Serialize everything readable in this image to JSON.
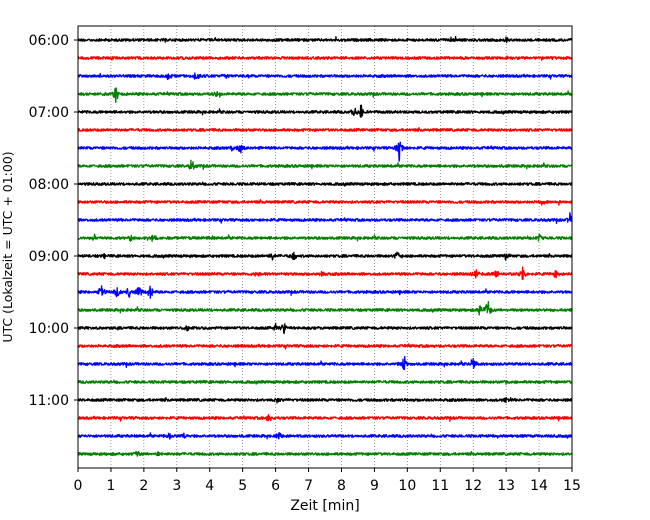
{
  "chart_data": {
    "type": "line",
    "title": "",
    "xlabel": "Zeit  [min]",
    "ylabel": "UTC (Lokalzeit = UTC + 01:00)",
    "xlim": [
      0,
      15
    ],
    "x_ticks": [
      "0",
      "1",
      "2",
      "3",
      "4",
      "5",
      "6",
      "7",
      "8",
      "9",
      "10",
      "11",
      "12",
      "13",
      "14",
      "15"
    ],
    "y_ticks": [
      "06:00",
      "07:00",
      "08:00",
      "09:00",
      "10:00",
      "11:00"
    ],
    "grid_x": true,
    "row_minutes": 15,
    "colors": [
      "#000000",
      "#ff0000",
      "#0000ff",
      "#008000"
    ],
    "rows": [
      {
        "start": "06:00",
        "color": "#000000",
        "events": [
          [
            13.0,
            0.35
          ]
        ]
      },
      {
        "start": "06:15",
        "color": "#ff0000",
        "events": []
      },
      {
        "start": "06:30",
        "color": "#0000ff",
        "events": [
          [
            2.75,
            0.6
          ],
          [
            3.6,
            0.9
          ],
          [
            4.5,
            0.3
          ]
        ]
      },
      {
        "start": "06:45",
        "color": "#008000",
        "events": [
          [
            1.15,
            1.0
          ],
          [
            4.2,
            0.6
          ],
          [
            0.8,
            0.3
          ]
        ]
      },
      {
        "start": "07:00",
        "color": "#000000",
        "events": [
          [
            8.4,
            0.8
          ],
          [
            8.6,
            1.0
          ]
        ]
      },
      {
        "start": "07:15",
        "color": "#ff0000",
        "events": []
      },
      {
        "start": "07:30",
        "color": "#0000ff",
        "events": [
          [
            4.95,
            0.8
          ],
          [
            9.75,
            1.5
          ],
          [
            4.7,
            0.4
          ]
        ]
      },
      {
        "start": "07:45",
        "color": "#008000",
        "events": [
          [
            3.45,
            0.9
          ]
        ]
      },
      {
        "start": "08:00",
        "color": "#000000",
        "events": []
      },
      {
        "start": "08:15",
        "color": "#ff0000",
        "events": [
          [
            14.1,
            0.3
          ]
        ]
      },
      {
        "start": "08:30",
        "color": "#0000ff",
        "events": [
          [
            14.95,
            1.0
          ]
        ]
      },
      {
        "start": "08:45",
        "color": "#008000",
        "events": [
          [
            0.5,
            0.4
          ],
          [
            1.6,
            0.5
          ],
          [
            4.05,
            0.35
          ],
          [
            14.0,
            0.5
          ],
          [
            2.3,
            0.3
          ]
        ]
      },
      {
        "start": "09:00",
        "color": "#000000",
        "events": [
          [
            5.9,
            0.55
          ],
          [
            6.55,
            0.7
          ],
          [
            9.7,
            0.7
          ],
          [
            13.0,
            0.55
          ],
          [
            0.8,
            0.3
          ]
        ]
      },
      {
        "start": "09:15",
        "color": "#ff0000",
        "events": [
          [
            5.4,
            0.5
          ],
          [
            7.4,
            0.5
          ],
          [
            12.1,
            0.6
          ],
          [
            13.5,
            0.8
          ],
          [
            14.5,
            0.5
          ],
          [
            12.7,
            0.5
          ]
        ]
      },
      {
        "start": "09:30",
        "color": "#0000ff",
        "events": [
          [
            0.7,
            0.9
          ],
          [
            1.2,
            0.8
          ],
          [
            1.55,
            0.7
          ],
          [
            1.85,
            0.8
          ],
          [
            2.2,
            0.9
          ]
        ]
      },
      {
        "start": "09:45",
        "color": "#008000",
        "events": [
          [
            12.45,
            1.5
          ],
          [
            12.2,
            0.6
          ]
        ]
      },
      {
        "start": "10:00",
        "color": "#000000",
        "events": [
          [
            6.25,
            0.9
          ],
          [
            3.3,
            0.35
          ],
          [
            6.0,
            0.5
          ]
        ]
      },
      {
        "start": "10:15",
        "color": "#ff0000",
        "events": []
      },
      {
        "start": "10:30",
        "color": "#0000ff",
        "events": [
          [
            9.9,
            1.2
          ],
          [
            12.0,
            1.1
          ]
        ]
      },
      {
        "start": "10:45",
        "color": "#008000",
        "events": [
          [
            13.0,
            0.3
          ]
        ]
      },
      {
        "start": "11:00",
        "color": "#000000",
        "events": [
          [
            6.05,
            0.4
          ],
          [
            13.0,
            0.3
          ]
        ]
      },
      {
        "start": "11:15",
        "color": "#ff0000",
        "events": [
          [
            5.8,
            0.6
          ]
        ]
      },
      {
        "start": "11:30",
        "color": "#0000ff",
        "events": [
          [
            2.8,
            0.45
          ],
          [
            3.2,
            0.45
          ],
          [
            6.1,
            0.5
          ],
          [
            12.8,
            0.35
          ]
        ]
      },
      {
        "start": "11:45",
        "color": "#008000",
        "events": [
          [
            1.8,
            0.35
          ],
          [
            2.4,
            0.35
          ]
        ]
      }
    ]
  }
}
